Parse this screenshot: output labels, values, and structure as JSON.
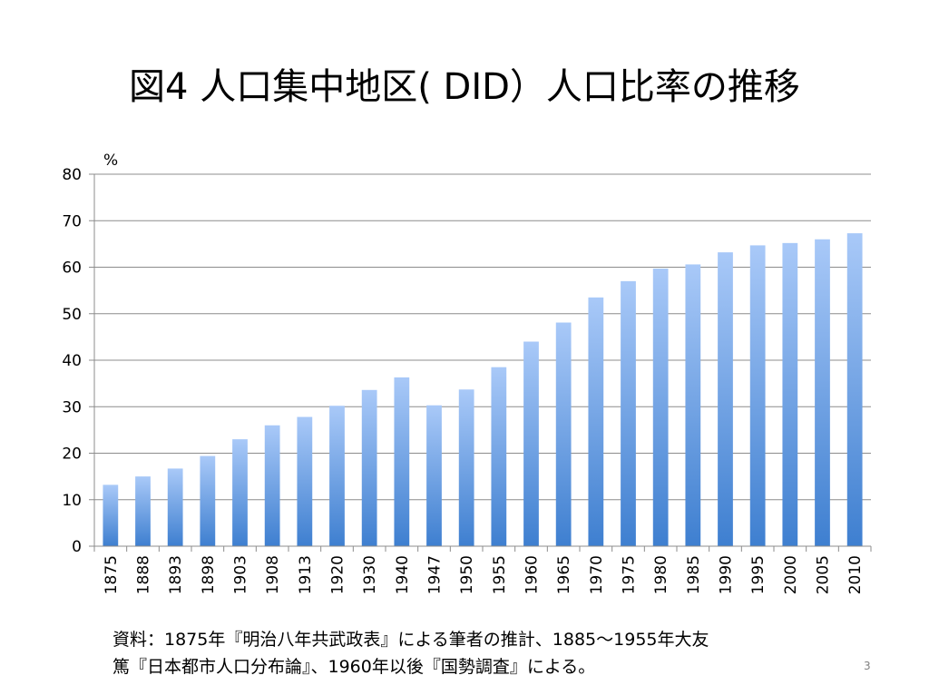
{
  "slide": {
    "title": "図4 人口集中地区( DID）人口比率の推移",
    "source_line1": "資料：1875年『明治八年共武政表』による筆者の推計、1885～1955年大友",
    "source_line2": "篤『日本都市人口分布論』、1960年以後『国勢調査』による。",
    "page_number": "3"
  },
  "chart_data": {
    "type": "bar",
    "title": "図4 人口集中地区( DID）人口比率の推移",
    "xlabel": "",
    "ylabel": "%",
    "ylim": [
      0,
      80
    ],
    "yticks": [
      0,
      10,
      20,
      30,
      40,
      50,
      60,
      70,
      80
    ],
    "grid": true,
    "legend": "none",
    "categories": [
      "1875",
      "1888",
      "1893",
      "1898",
      "1903",
      "1908",
      "1913",
      "1920",
      "1930",
      "1940",
      "1947",
      "1950",
      "1955",
      "1960",
      "1965",
      "1970",
      "1975",
      "1980",
      "1985",
      "1990",
      "1995",
      "2000",
      "2005",
      "2010"
    ],
    "values": [
      13.2,
      15.0,
      16.7,
      19.4,
      23.0,
      26.0,
      27.8,
      30.2,
      33.6,
      36.3,
      30.3,
      33.7,
      38.5,
      44.0,
      48.1,
      53.5,
      57.0,
      59.7,
      60.6,
      63.2,
      64.7,
      65.2,
      66.0,
      67.3
    ],
    "colors": {
      "bar_top": "#A9C9F8",
      "bar_bottom": "#3E7FD0",
      "grid": "#8C8C8C",
      "axis": "#8C8C8C"
    }
  }
}
